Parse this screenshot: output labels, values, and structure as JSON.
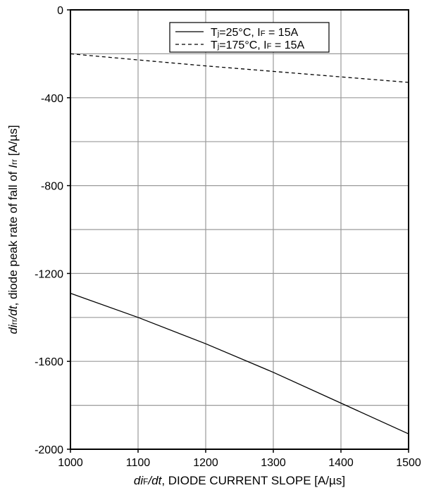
{
  "chart_data": {
    "type": "line",
    "xlabel": {
      "parts": [
        {
          "text": "di",
          "style": "italic"
        },
        {
          "text": "F",
          "style": "sub"
        },
        {
          "text": "/dt",
          "style": "italic"
        },
        {
          "text": ", DIODE CURRENT SLOPE [A/µs]",
          "style": "normal"
        }
      ]
    },
    "ylabel": {
      "parts": [
        {
          "text": "di",
          "style": "italic"
        },
        {
          "text": "rr",
          "style": "sub"
        },
        {
          "text": "/dt",
          "style": "italic"
        },
        {
          "text": ", diode peak rate of fall of ",
          "style": "normal"
        },
        {
          "text": "I",
          "style": "italic"
        },
        {
          "text": "rr",
          "style": "sub"
        },
        {
          "text": " [A/µs]",
          "style": "normal"
        }
      ]
    },
    "xlim": [
      1000,
      1500
    ],
    "ylim": [
      -2000,
      0
    ],
    "x_ticks": [
      1000,
      1100,
      1200,
      1300,
      1400,
      1500
    ],
    "y_ticks": [
      0,
      -400,
      -800,
      -1200,
      -1600,
      -2000
    ],
    "x_grid": [
      1000,
      1100,
      1200,
      1300,
      1400,
      1500
    ],
    "y_grid": [
      -200,
      -400,
      -600,
      -800,
      -1000,
      -1200,
      -1400,
      -1600,
      -1800
    ],
    "grid": true,
    "legend_position": "top-right",
    "series": [
      {
        "name": "Tj=25°C, IF = 15A",
        "legend_parts": [
          {
            "text": "T",
            "style": "normal"
          },
          {
            "text": "j",
            "style": "sub"
          },
          {
            "text": "=25°C, I",
            "style": "normal"
          },
          {
            "text": "F",
            "style": "sub"
          },
          {
            "text": " = 15A",
            "style": "normal"
          }
        ],
        "line_style": "solid",
        "x": [
          1000,
          1100,
          1200,
          1300,
          1400,
          1500
        ],
        "y": [
          -1290,
          -1400,
          -1520,
          -1650,
          -1790,
          -1930
        ]
      },
      {
        "name": "Tj=175°C, IF = 15A",
        "legend_parts": [
          {
            "text": "T",
            "style": "normal"
          },
          {
            "text": "j",
            "style": "sub"
          },
          {
            "text": "=175°C, I",
            "style": "normal"
          },
          {
            "text": "F",
            "style": "sub"
          },
          {
            "text": " = 15A",
            "style": "normal"
          }
        ],
        "line_style": "dashed",
        "x": [
          1000,
          1100,
          1200,
          1300,
          1400,
          1500
        ],
        "y": [
          -200,
          -228,
          -255,
          -280,
          -305,
          -330
        ]
      }
    ]
  }
}
